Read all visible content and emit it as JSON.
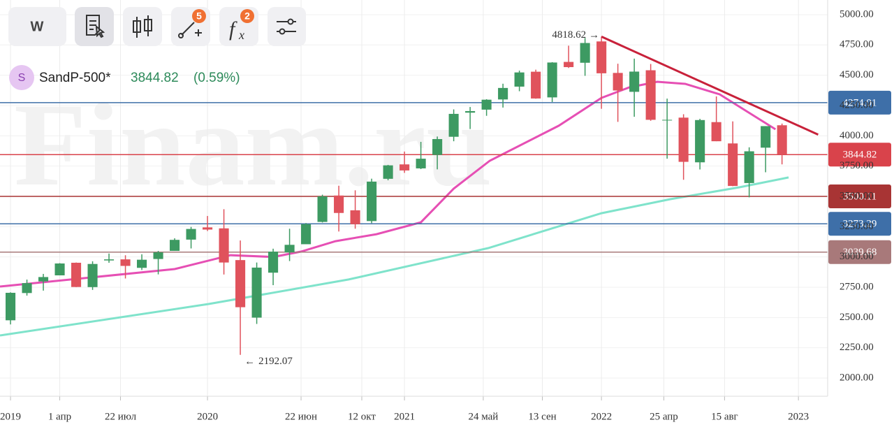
{
  "chart_data": {
    "type": "candlestick",
    "toolbar": {
      "interval": "W",
      "badges": [
        "5",
        "2"
      ]
    },
    "symbol": {
      "icon": "S",
      "name": "SandP-500*",
      "last": 3844.82,
      "change": "(0.59%)"
    },
    "watermark": "Finam.ru",
    "colors": {
      "up": "#3d9a62",
      "down": "#e0525c"
    },
    "candles": {
      "x": [
        0,
        1,
        2,
        3,
        4,
        5,
        6,
        7,
        8,
        9,
        10,
        11,
        12,
        13,
        14,
        15,
        16,
        17,
        18,
        19,
        20,
        21,
        22,
        23,
        24,
        25,
        26,
        27,
        28,
        29,
        30,
        31,
        32,
        33,
        34,
        35,
        36,
        37,
        38,
        39,
        40,
        41,
        42,
        43,
        44,
        45,
        46,
        47
      ],
      "open": [
        2477,
        2702,
        2798,
        2848,
        2952,
        2751,
        2971,
        2980,
        2910,
        2983,
        3050,
        3143,
        3244,
        3236,
        2974,
        2499,
        2870,
        3038,
        3105,
        3289,
        3507,
        3385,
        3296,
        3645,
        3764,
        3731,
        3842,
        3992,
        4191,
        4216,
        4300,
        4406,
        4529,
        4317,
        4610,
        4603,
        4779,
        4519,
        4363,
        4541,
        4130,
        4150,
        3781,
        4113,
        3937,
        3610,
        3902,
        4087
      ],
      "high": [
        2708,
        2813,
        2860,
        2949,
        2954,
        2964,
        3028,
        3014,
        3022,
        3050,
        3154,
        3248,
        3338,
        3394,
        3136,
        2954,
        3068,
        3233,
        3280,
        3514,
        3588,
        3550,
        3646,
        3760,
        3870,
        3950,
        3994,
        4218,
        4238,
        4302,
        4430,
        4538,
        4546,
        4608,
        4744,
        4808,
        4818.62,
        4595,
        4637,
        4593,
        4307,
        4178,
        4140,
        4325,
        4119,
        3905,
        4080,
        4101
      ],
      "low": [
        2443,
        2681,
        2722,
        2848,
        2751,
        2728,
        2952,
        2822,
        2892,
        2856,
        3050,
        3070,
        3214,
        2855,
        2192.07,
        2447,
        2767,
        2966,
        3115,
        3284,
        3210,
        3233,
        3279,
        3633,
        3694,
        3725,
        3723,
        3955,
        4056,
        4165,
        4233,
        4368,
        4306,
        4279,
        4560,
        4495,
        4223,
        4115,
        4157,
        4124,
        3811,
        3637,
        3722,
        3955,
        3584,
        3492,
        3699,
        3764
      ],
      "close": [
        2704,
        2784,
        2834,
        2946,
        2752,
        2942,
        2980,
        2926,
        2977,
        3038,
        3141,
        3231,
        3226,
        2954,
        2585,
        2912,
        3044,
        3100,
        3271,
        3500,
        3363,
        3270,
        3622,
        3756,
        3714,
        3811,
        3973,
        4181,
        4204,
        4298,
        4395,
        4523,
        4308,
        4605,
        4567,
        4766,
        4516,
        4374,
        4530,
        4132,
        4132,
        3785,
        4130,
        3955,
        3586,
        3872,
        4080,
        3844.82
      ]
    },
    "overlays": [
      {
        "color": "#e64fb4",
        "x": [
          -0.64,
          10,
          13.4,
          16,
          17.7,
          19.8,
          22.3,
          25,
          27,
          29.2,
          33.4,
          36,
          37.7,
          39.4,
          41.1,
          43.2,
          44.9,
          46.6
        ],
        "values": [
          2756,
          2900,
          3015,
          3000,
          3044,
          3130,
          3188,
          3286,
          3564,
          3794,
          4083,
          4313,
          4400,
          4446,
          4429,
          4342,
          4198,
          4054
        ]
      },
      {
        "color": "#7fe3cb",
        "x": [
          -0.64,
          12.1,
          20.6,
          29.1,
          36,
          40.2,
          44.4,
          47.4
        ],
        "values": [
          2352,
          2612,
          2814,
          3073,
          3361,
          3477,
          3575,
          3656
        ]
      }
    ],
    "trend": {
      "color": "#c8213a",
      "x": [
        36,
        49.2
      ],
      "values": [
        4818.62,
        4010
      ]
    },
    "levels": [
      {
        "value": 4274.01,
        "color": "#3e6fa8"
      },
      {
        "value": 3844.82,
        "color": "#d9434b"
      },
      {
        "value": 3500.11,
        "color": "#a83434"
      },
      {
        "value": 3273.29,
        "color": "#3e6fa8"
      },
      {
        "value": 3039.68,
        "color": "#a8797a"
      }
    ],
    "annotations": [
      {
        "x": 36,
        "value": 4818.62,
        "side": "left"
      },
      {
        "x": 14,
        "value": 2192.07,
        "side": "right"
      }
    ],
    "xlim": [
      -0.64,
      49.78
    ],
    "ylim": [
      1850,
      5121
    ],
    "xticks": [
      {
        "value": 0,
        "label": "2019"
      },
      {
        "value": 3,
        "label": "1 апр"
      },
      {
        "value": 6.7,
        "label": "22 июл"
      },
      {
        "value": 12,
        "label": "2020"
      },
      {
        "value": 17.7,
        "label": "22 июн"
      },
      {
        "value": 21.4,
        "label": "12 окт"
      },
      {
        "value": 24,
        "label": "2021"
      },
      {
        "value": 28.8,
        "label": "24 май"
      },
      {
        "value": 32.4,
        "label": "13 сен"
      },
      {
        "value": 36,
        "label": "2022"
      },
      {
        "value": 39.8,
        "label": "25 апр"
      },
      {
        "value": 43.5,
        "label": "15 авг"
      },
      {
        "value": 48,
        "label": "2023"
      }
    ],
    "yticks": [
      {
        "value": 2000,
        "label": "2000.00"
      },
      {
        "value": 2250,
        "label": "2250.00"
      },
      {
        "value": 2500,
        "label": "2500.00"
      },
      {
        "value": 2750,
        "label": "2750.00"
      },
      {
        "value": 3000,
        "label": "3000.00"
      },
      {
        "value": 3250,
        "label": "3250.00"
      },
      {
        "value": 3500,
        "label": "3500.00"
      },
      {
        "value": 3750,
        "label": "3750.00"
      },
      {
        "value": 4000,
        "label": "4000.00"
      },
      {
        "value": 4250,
        "label": "4250.00"
      },
      {
        "value": 4500,
        "label": "4500.00"
      },
      {
        "value": 4750,
        "label": "4750.00"
      },
      {
        "value": 5000,
        "label": "5000.00"
      }
    ],
    "grid": true
  }
}
